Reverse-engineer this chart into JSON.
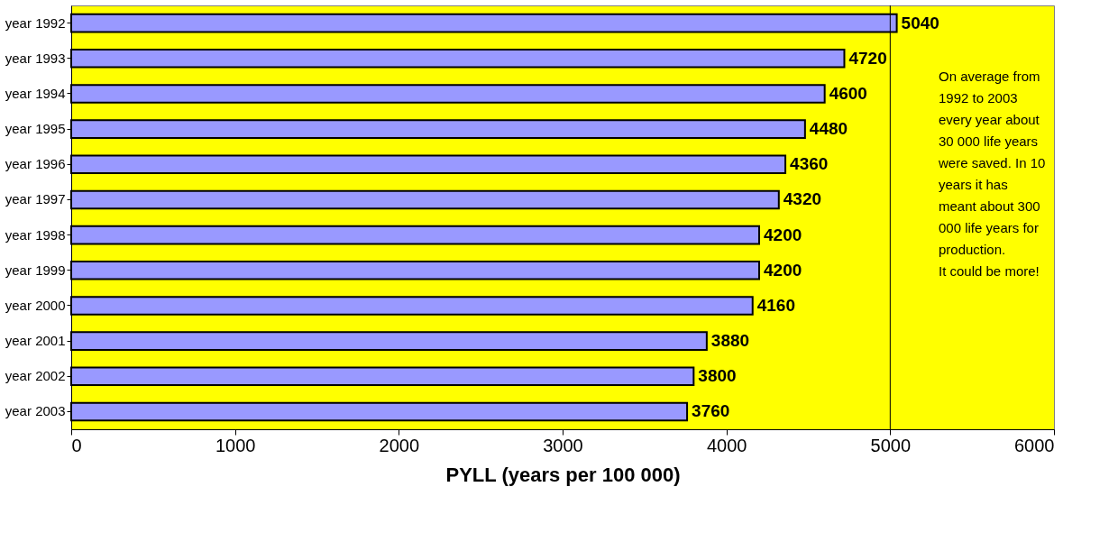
{
  "chart_data": {
    "type": "bar",
    "orientation": "horizontal",
    "xlabel": "PYLL (years per 100 000)",
    "categories": [
      "year 1992",
      "year 1993",
      "year 1994",
      "year 1995",
      "year 1996",
      "year 1997",
      "year 1998",
      "year 1999",
      "year 2000",
      "year 2001",
      "year 2002",
      "year 2003"
    ],
    "values": [
      5040,
      4720,
      4600,
      4480,
      4360,
      4320,
      4200,
      4200,
      4160,
      3880,
      3800,
      3760
    ],
    "color": "#9999ff",
    "data_labels": true,
    "xlim": [
      0,
      6000
    ],
    "xticks": [
      0,
      1000,
      2000,
      3000,
      4000,
      5000,
      6000
    ],
    "ref_lines": [
      {
        "axis": "x",
        "value": 5000,
        "label": null,
        "color": "#000000"
      }
    ],
    "annotations": [
      "On average from\n1992 to 2003\nevery year about\n30 000 life years\nwere saved. In 10\nyears it has\nmeant about 300\n000 life years for\nproduction.\nIt could be more!"
    ],
    "grid": false
  }
}
